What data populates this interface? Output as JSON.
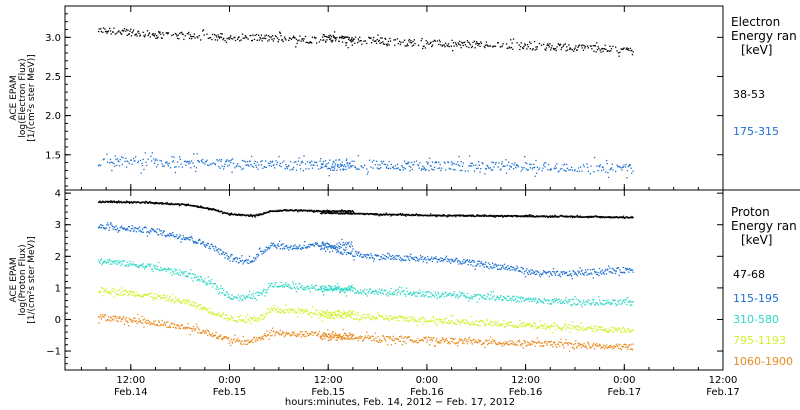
{
  "chart_data": [
    {
      "type": "scatter",
      "panel": "electron",
      "ylabel": [
        "ACE EPAM",
        "log(Electron Flux)",
        "[1/(cm²s ster MeV)]"
      ],
      "ylim": [
        1.05,
        3.4
      ],
      "yticks": [
        1.5,
        2.0,
        2.5,
        3.0
      ],
      "ytick_labels": [
        "1.5",
        "2.0",
        "2.5",
        "3.0"
      ],
      "legend": {
        "title": [
          "Electron",
          "Energy ran",
          "[keV]"
        ],
        "placement": "right"
      },
      "series": [
        {
          "name": "38-53",
          "color": "#000000",
          "segments": [
            {
              "x": [
                8,
                15,
                21,
                27,
                33,
                39
              ],
              "y": [
                3.1,
                3.04,
                3.02,
                3.0,
                2.98,
                2.97
              ]
            },
            {
              "x": [
                35,
                40,
                46,
                52,
                58,
                64,
                70,
                73
              ],
              "y": [
                3.0,
                2.97,
                2.94,
                2.92,
                2.9,
                2.88,
                2.86,
                2.83
              ]
            }
          ]
        },
        {
          "name": "175-315",
          "color": "#1c6fd0",
          "segments": [
            {
              "x": [
                8,
                15,
                21,
                27,
                33,
                39
              ],
              "y": [
                1.42,
                1.4,
                1.39,
                1.38,
                1.37,
                1.37
              ]
            },
            {
              "x": [
                35,
                40,
                46,
                52,
                58,
                64,
                70,
                73
              ],
              "y": [
                1.39,
                1.38,
                1.37,
                1.36,
                1.36,
                1.35,
                1.34,
                1.33
              ]
            }
          ]
        }
      ]
    },
    {
      "type": "scatter",
      "panel": "proton",
      "ylabel": [
        "ACE EPAM",
        "log(Proton Flux)",
        "[1/(cm²s ster MeV)]"
      ],
      "ylim": [
        -1.6,
        4.1
      ],
      "yticks": [
        -1,
        0,
        1,
        2,
        3,
        4
      ],
      "ytick_labels": [
        "−1",
        "0",
        "1",
        "2",
        "3",
        "4"
      ],
      "legend": {
        "title": [
          "Proton",
          "Energy ran",
          "[keV]"
        ],
        "placement": "right"
      },
      "series": [
        {
          "name": "47-68",
          "color": "#000000",
          "segments": [
            {
              "x": [
                8,
                14,
                19,
                22,
                24,
                27,
                29,
                31,
                35,
                39
              ],
              "y": [
                3.75,
                3.72,
                3.65,
                3.5,
                3.35,
                3.3,
                3.45,
                3.48,
                3.45,
                3.45
              ]
            },
            {
              "x": [
                35,
                45,
                55,
                65,
                73
              ],
              "y": [
                3.4,
                3.33,
                3.3,
                3.28,
                3.25
              ]
            }
          ]
        },
        {
          "name": "115-195",
          "color": "#1c6fd0",
          "segments": [
            {
              "x": [
                8,
                14,
                19,
                22,
                24,
                26,
                27,
                29,
                31,
                35,
                39
              ],
              "y": [
                2.95,
                2.85,
                2.6,
                2.3,
                1.95,
                1.85,
                1.95,
                2.4,
                2.3,
                2.35,
                2.4
              ]
            },
            {
              "x": [
                35,
                40,
                45,
                50,
                52,
                55,
                58,
                61,
                64,
                67,
                70,
                73
              ],
              "y": [
                2.3,
                2.05,
                1.95,
                1.92,
                1.85,
                1.75,
                1.65,
                1.5,
                1.45,
                1.5,
                1.55,
                1.6
              ]
            }
          ]
        },
        {
          "name": "310-580",
          "color": "#2ed8c6",
          "segments": [
            {
              "x": [
                8,
                14,
                19,
                22,
                24,
                26,
                28,
                29,
                31,
                35,
                39
              ],
              "y": [
                1.9,
                1.7,
                1.45,
                1.1,
                0.75,
                0.7,
                0.85,
                1.15,
                1.1,
                1.0,
                1.0
              ]
            },
            {
              "x": [
                35,
                45,
                55,
                62,
                70,
                73
              ],
              "y": [
                1.0,
                0.85,
                0.75,
                0.6,
                0.55,
                0.55
              ]
            }
          ]
        },
        {
          "name": "795-1193",
          "color": "#d2f028",
          "segments": [
            {
              "x": [
                8,
                14,
                19,
                22,
                24,
                26,
                28,
                29,
                31,
                35,
                39
              ],
              "y": [
                0.95,
                0.8,
                0.55,
                0.25,
                0.05,
                0.0,
                0.1,
                0.3,
                0.3,
                0.25,
                0.2
              ]
            },
            {
              "x": [
                35,
                45,
                55,
                62,
                70,
                73
              ],
              "y": [
                0.15,
                0.05,
                -0.1,
                -0.2,
                -0.3,
                -0.3
              ]
            }
          ]
        },
        {
          "name": "1060-1900",
          "color": "#e88a1c",
          "segments": [
            {
              "x": [
                8,
                14,
                19,
                22,
                24,
                26,
                28,
                29,
                31,
                35,
                39
              ],
              "y": [
                0.1,
                -0.05,
                -0.25,
                -0.45,
                -0.65,
                -0.7,
                -0.55,
                -0.4,
                -0.45,
                -0.45,
                -0.5
              ]
            },
            {
              "x": [
                35,
                45,
                55,
                62,
                70,
                73
              ],
              "y": [
                -0.55,
                -0.6,
                -0.7,
                -0.75,
                -0.85,
                -0.85
              ]
            }
          ]
        }
      ]
    }
  ],
  "x_axis": {
    "title": "hours:minutes, Feb. 14, 2012 − Feb. 17, 2012",
    "xlim": [
      4,
      84
    ],
    "ticks": [
      {
        "x": 12,
        "time": "12:00",
        "date": "Feb.14"
      },
      {
        "x": 24,
        "time": "0:00",
        "date": "Feb.15"
      },
      {
        "x": 36,
        "time": "12:00",
        "date": "Feb.15"
      },
      {
        "x": 48,
        "time": "0:00",
        "date": "Feb.16"
      },
      {
        "x": 60,
        "time": "12:00",
        "date": "Feb.16"
      },
      {
        "x": 72,
        "time": "0:00",
        "date": "Feb.17"
      },
      {
        "x": 84,
        "time": "12:00",
        "date": "Feb.17"
      }
    ]
  }
}
